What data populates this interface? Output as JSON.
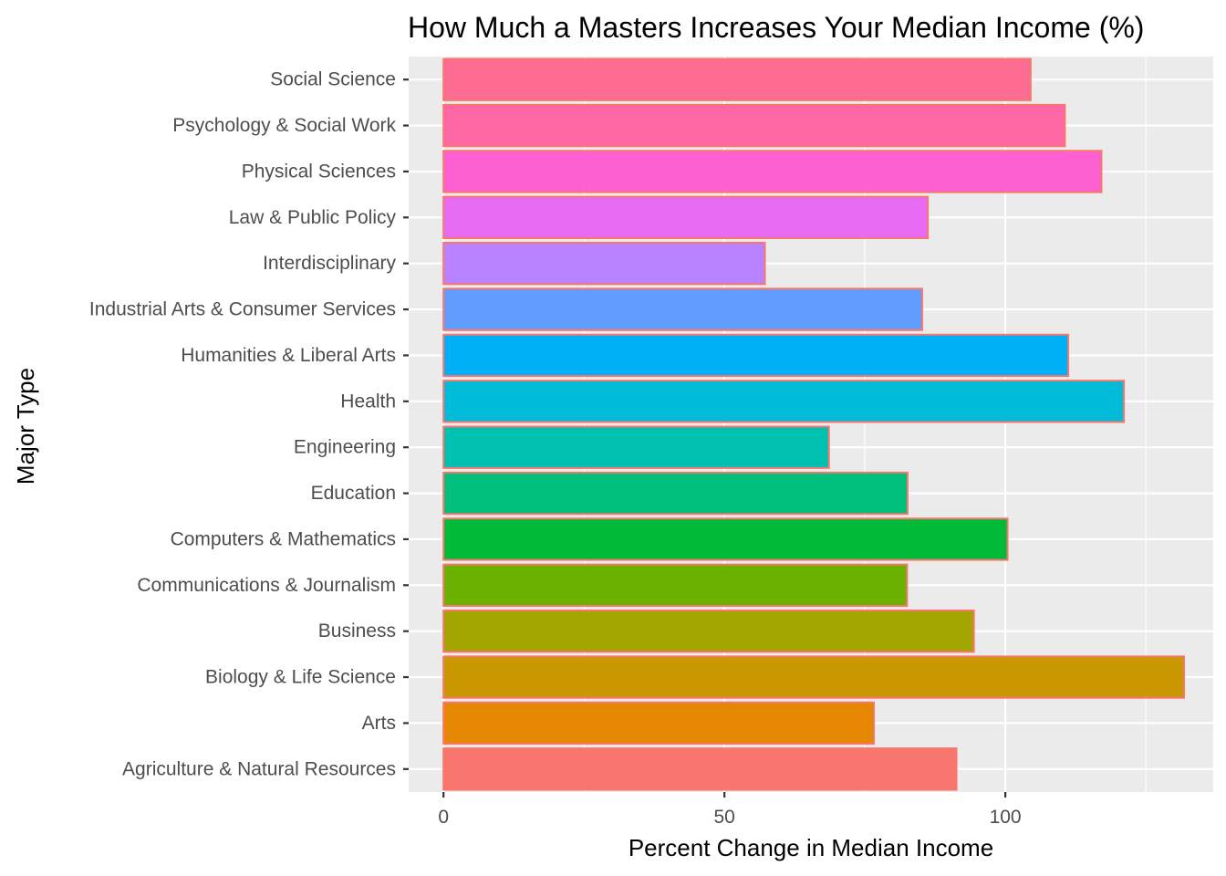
{
  "chart_data": {
    "type": "bar",
    "orientation": "horizontal",
    "title": "How Much a Masters Increases Your Median Income (%)",
    "xlabel": "Percent Change in Median Income",
    "ylabel": "Major Type",
    "xlim": [
      -6.2,
      137
    ],
    "x_ticks": [
      0,
      50,
      100
    ],
    "grid": true,
    "legend": "none",
    "bar_outline_color": "#F8766D",
    "categories": [
      "Agriculture & Natural Resources",
      "Arts",
      "Biology & Life Science",
      "Business",
      "Communications & Journalism",
      "Computers & Mathematics",
      "Education",
      "Engineering",
      "Health",
      "Humanities & Liberal Arts",
      "Industrial Arts & Consumer Services",
      "Interdisciplinary",
      "Law & Public Policy",
      "Physical Sciences",
      "Psychology & Social Work",
      "Social Science"
    ],
    "values": [
      91.3,
      76.6,
      131.8,
      94.4,
      82.5,
      100.4,
      82.6,
      68.6,
      121.1,
      111.2,
      85.2,
      57.2,
      86.2,
      117.1,
      110.6,
      104.5
    ],
    "colors": [
      "#F8766D",
      "#E58700",
      "#C99800",
      "#A3A500",
      "#6BB100",
      "#00BA38",
      "#00BF7D",
      "#00C0AF",
      "#00BCD8",
      "#00B0F6",
      "#619CFF",
      "#B983FF",
      "#E76BF3",
      "#FD61D1",
      "#FF67A4",
      "#FF6C91"
    ]
  }
}
